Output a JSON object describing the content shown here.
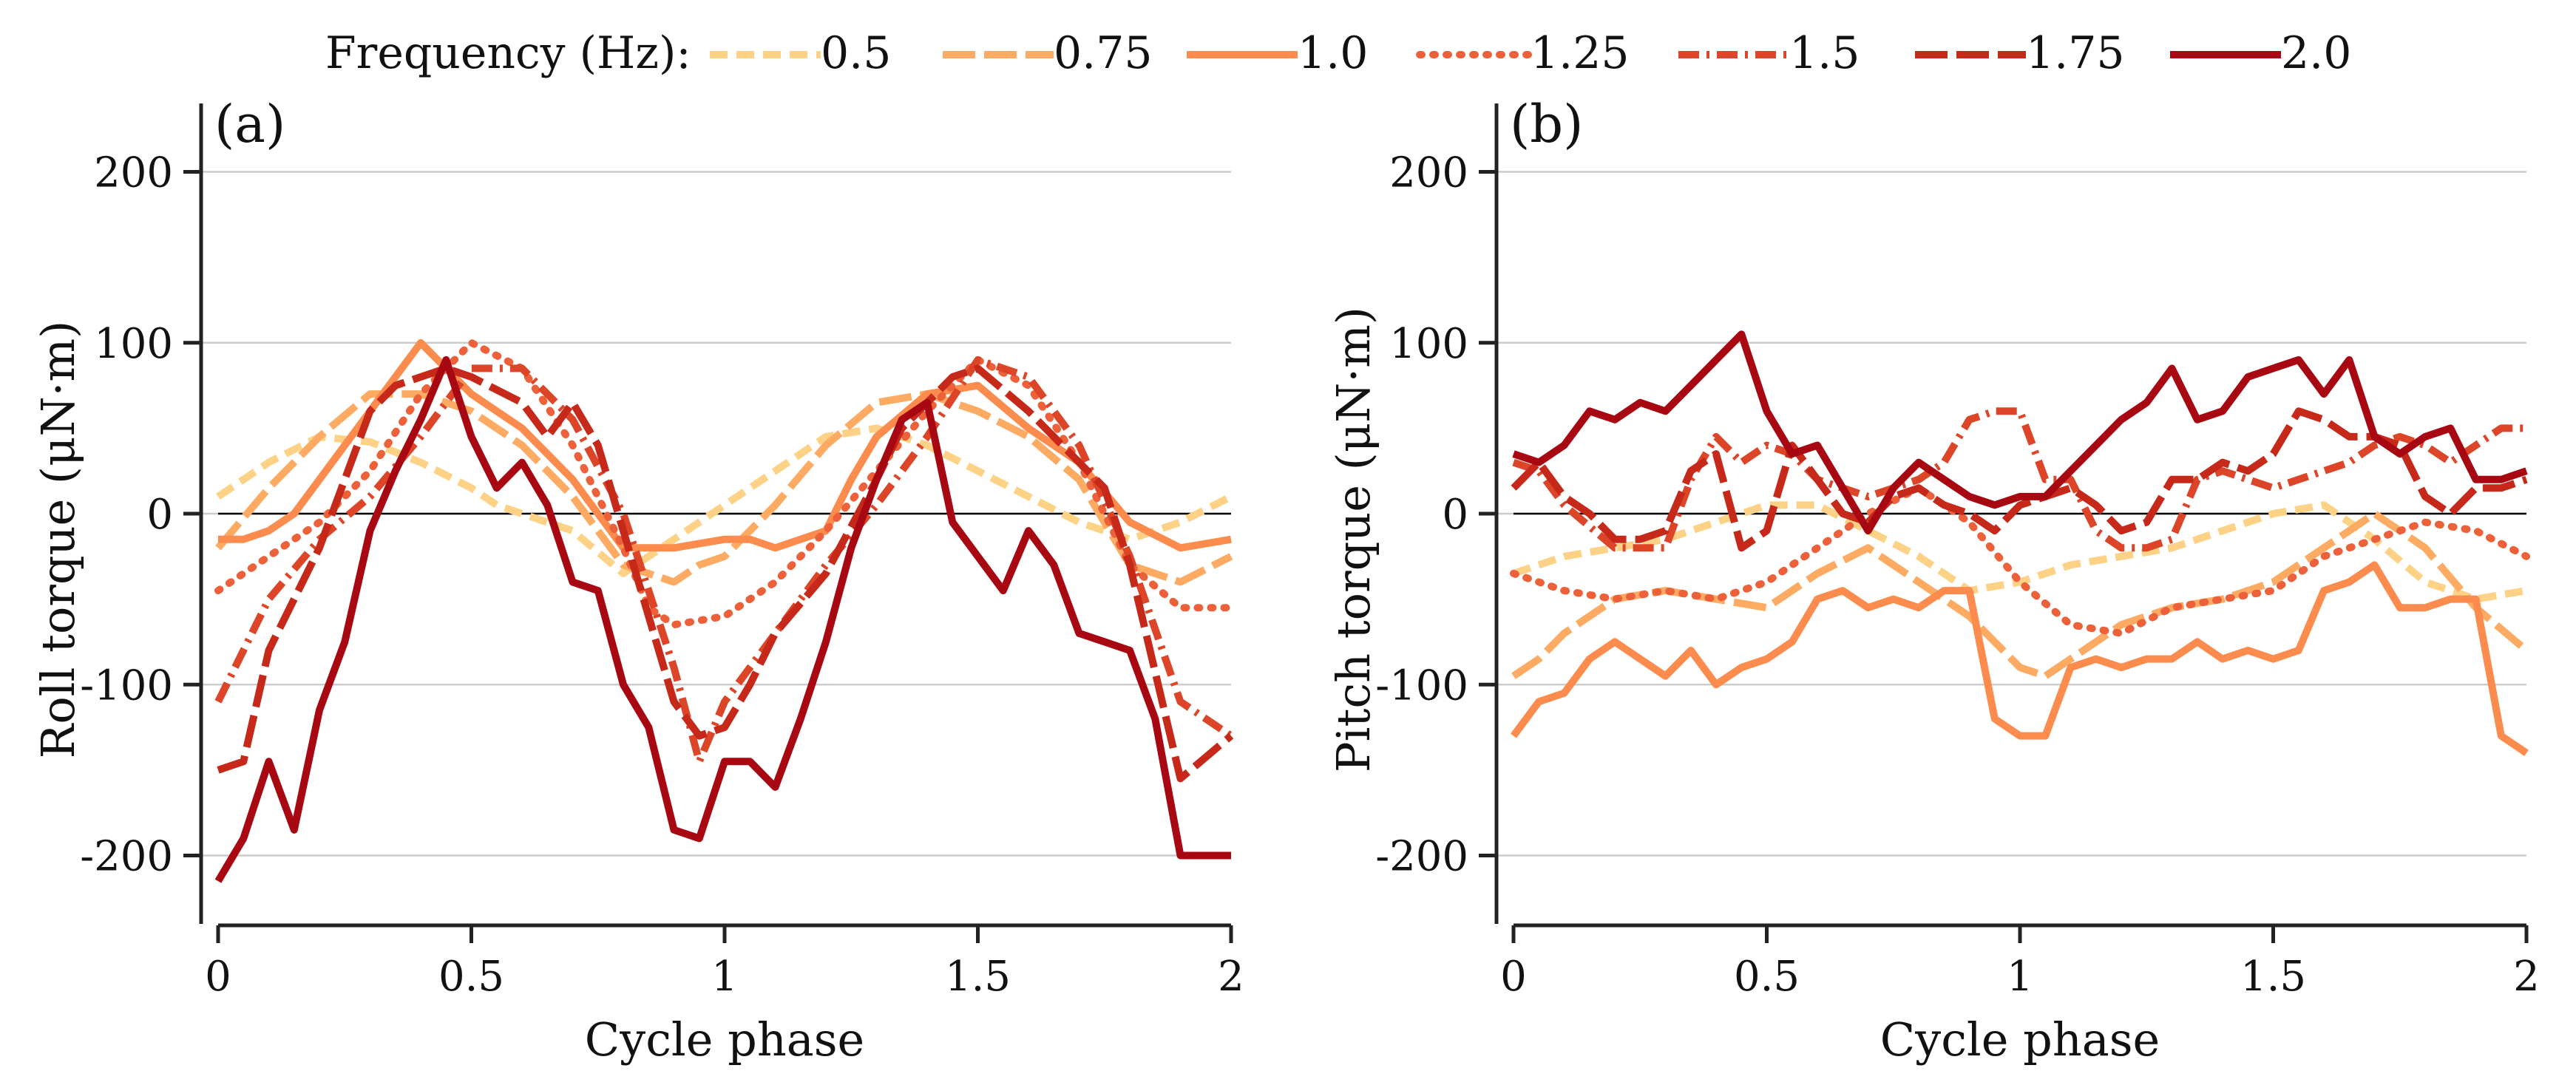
{
  "legend": {
    "title": "Frequency (Hz):",
    "entries": [
      {
        "label": "0.5",
        "color": "#fdd286",
        "dash": "dash"
      },
      {
        "label": "0.75",
        "color": "#fdab63",
        "dash": "longdash"
      },
      {
        "label": "1.0",
        "color": "#fb8c4d",
        "dash": "solid"
      },
      {
        "label": "1.25",
        "color": "#ec6139",
        "dash": "dot"
      },
      {
        "label": "1.5",
        "color": "#dd4528",
        "dash": "dashdot"
      },
      {
        "label": "1.75",
        "color": "#c6291a",
        "dash": "longdash"
      },
      {
        "label": "2.0",
        "color": "#a80812",
        "dash": "solid"
      }
    ]
  },
  "chart_data": [
    {
      "type": "line",
      "panel_label": "(a)",
      "xlabel": "Cycle phase",
      "ylabel": "Roll torque (μN·m)",
      "xlim": [
        0,
        2
      ],
      "ylim": [
        -240,
        240
      ],
      "xticks": [
        "0",
        "0.5",
        "1",
        "1.5",
        "2"
      ],
      "xtick_values": [
        0,
        0.5,
        1,
        1.5,
        2
      ],
      "yticks": [
        "-200",
        "-100",
        "0",
        "100",
        "200"
      ],
      "ytick_values": [
        -200,
        -100,
        0,
        100,
        200
      ],
      "grid": "horizontal",
      "zero_line": true,
      "series": [
        {
          "name": "0.5",
          "x": [
            0,
            0.1,
            0.2,
            0.3,
            0.4,
            0.5,
            0.55,
            0.6,
            0.7,
            0.8,
            0.9,
            1.0,
            1.1,
            1.2,
            1.3,
            1.4,
            1.5,
            1.6,
            1.7,
            1.8,
            1.9,
            2.0
          ],
          "y": [
            10,
            30,
            45,
            42,
            30,
            15,
            5,
            0,
            -10,
            -35,
            -15,
            5,
            25,
            45,
            50,
            40,
            25,
            10,
            -5,
            -15,
            -5,
            10
          ]
        },
        {
          "name": "0.75",
          "x": [
            0,
            0.1,
            0.2,
            0.3,
            0.4,
            0.5,
            0.6,
            0.7,
            0.8,
            0.9,
            0.95,
            1.0,
            1.1,
            1.2,
            1.3,
            1.4,
            1.5,
            1.6,
            1.7,
            1.8,
            1.9,
            2.0
          ],
          "y": [
            -20,
            15,
            45,
            70,
            70,
            60,
            40,
            10,
            -30,
            -40,
            -30,
            -25,
            5,
            40,
            65,
            70,
            60,
            45,
            20,
            -30,
            -40,
            -25
          ]
        },
        {
          "name": "1.0",
          "x": [
            0,
            0.05,
            0.1,
            0.15,
            0.2,
            0.3,
            0.4,
            0.45,
            0.5,
            0.6,
            0.7,
            0.8,
            0.9,
            1.0,
            1.05,
            1.1,
            1.2,
            1.25,
            1.3,
            1.4,
            1.5,
            1.6,
            1.7,
            1.8,
            1.9,
            2.0
          ],
          "y": [
            -15,
            -15,
            -10,
            0,
            20,
            60,
            100,
            85,
            70,
            50,
            20,
            -20,
            -20,
            -15,
            -15,
            -20,
            -10,
            20,
            45,
            70,
            75,
            50,
            30,
            -5,
            -20,
            -15
          ]
        },
        {
          "name": "1.25",
          "x": [
            0,
            0.1,
            0.2,
            0.3,
            0.4,
            0.5,
            0.6,
            0.7,
            0.8,
            0.85,
            0.9,
            1.0,
            1.1,
            1.2,
            1.3,
            1.4,
            1.5,
            1.6,
            1.7,
            1.8,
            1.9,
            2.0
          ],
          "y": [
            -45,
            -25,
            -5,
            25,
            70,
            100,
            85,
            40,
            -20,
            -55,
            -65,
            -60,
            -40,
            -10,
            25,
            60,
            90,
            75,
            30,
            -30,
            -55,
            -55
          ]
        },
        {
          "name": "1.5",
          "x": [
            0,
            0.1,
            0.2,
            0.3,
            0.4,
            0.5,
            0.6,
            0.7,
            0.8,
            0.9,
            0.95,
            1.0,
            1.1,
            1.2,
            1.3,
            1.4,
            1.5,
            1.6,
            1.7,
            1.8,
            1.9,
            2.0
          ],
          "y": [
            -110,
            -50,
            -15,
            10,
            45,
            85,
            85,
            55,
            0,
            -90,
            -145,
            -110,
            -70,
            -30,
            5,
            45,
            90,
            80,
            40,
            -25,
            -110,
            -130
          ]
        },
        {
          "name": "1.75",
          "x": [
            0,
            0.05,
            0.1,
            0.2,
            0.3,
            0.35,
            0.45,
            0.5,
            0.6,
            0.65,
            0.7,
            0.75,
            0.8,
            0.9,
            0.95,
            1.0,
            1.05,
            1.1,
            1.2,
            1.3,
            1.35,
            1.4,
            1.45,
            1.5,
            1.6,
            1.7,
            1.75,
            1.8,
            1.9,
            2.0
          ],
          "y": [
            -150,
            -145,
            -80,
            -20,
            60,
            75,
            85,
            80,
            65,
            45,
            65,
            40,
            -10,
            -110,
            -130,
            -125,
            -100,
            -70,
            -35,
            20,
            50,
            65,
            80,
            85,
            60,
            30,
            15,
            -30,
            -155,
            -130
          ]
        },
        {
          "name": "2.0",
          "x": [
            0,
            0.05,
            0.1,
            0.15,
            0.2,
            0.25,
            0.3,
            0.35,
            0.4,
            0.45,
            0.5,
            0.55,
            0.6,
            0.65,
            0.7,
            0.75,
            0.8,
            0.85,
            0.9,
            0.95,
            1.0,
            1.05,
            1.1,
            1.15,
            1.2,
            1.25,
            1.3,
            1.35,
            1.4,
            1.45,
            1.5,
            1.55,
            1.6,
            1.65,
            1.7,
            1.75,
            1.8,
            1.85,
            1.9,
            1.95,
            2.0
          ],
          "y": [
            -215,
            -190,
            -145,
            -185,
            -115,
            -75,
            -10,
            25,
            55,
            90,
            45,
            15,
            30,
            5,
            -40,
            -45,
            -100,
            -125,
            -185,
            -190,
            -145,
            -145,
            -160,
            -120,
            -75,
            -20,
            20,
            55,
            65,
            -5,
            -25,
            -45,
            -10,
            -30,
            -70,
            -75,
            -80,
            -120,
            -200,
            -200,
            -200
          ]
        }
      ]
    },
    {
      "type": "line",
      "panel_label": "(b)",
      "xlabel": "Cycle phase",
      "ylabel": "Pitch torque (μN·m)",
      "xlim": [
        0,
        2
      ],
      "ylim": [
        -240,
        240
      ],
      "xticks": [
        "0",
        "0.5",
        "1",
        "1.5",
        "2"
      ],
      "xtick_values": [
        0,
        0.5,
        1,
        1.5,
        2
      ],
      "yticks": [
        "-200",
        "-100",
        "0",
        "100",
        "200"
      ],
      "ytick_values": [
        -200,
        -100,
        0,
        100,
        200
      ],
      "grid": "horizontal",
      "zero_line": true,
      "series": [
        {
          "name": "0.5",
          "x": [
            0,
            0.1,
            0.2,
            0.3,
            0.4,
            0.5,
            0.6,
            0.7,
            0.8,
            0.9,
            1.0,
            1.1,
            1.2,
            1.3,
            1.4,
            1.5,
            1.6,
            1.7,
            1.8,
            1.9,
            2.0
          ],
          "y": [
            -35,
            -25,
            -20,
            -15,
            -5,
            5,
            5,
            -10,
            -25,
            -45,
            -40,
            -30,
            -25,
            -20,
            -10,
            0,
            5,
            -15,
            -40,
            -50,
            -45
          ]
        },
        {
          "name": "0.75",
          "x": [
            0,
            0.05,
            0.1,
            0.2,
            0.3,
            0.4,
            0.5,
            0.6,
            0.7,
            0.8,
            0.9,
            1.0,
            1.05,
            1.1,
            1.2,
            1.3,
            1.4,
            1.5,
            1.6,
            1.7,
            1.8,
            1.9,
            2.0
          ],
          "y": [
            -95,
            -85,
            -70,
            -50,
            -45,
            -50,
            -55,
            -35,
            -20,
            -40,
            -60,
            -90,
            -95,
            -85,
            -65,
            -55,
            -50,
            -40,
            -20,
            0,
            -20,
            -55,
            -80
          ]
        },
        {
          "name": "1.0",
          "x": [
            0,
            0.05,
            0.1,
            0.15,
            0.2,
            0.25,
            0.3,
            0.35,
            0.4,
            0.45,
            0.5,
            0.55,
            0.6,
            0.65,
            0.7,
            0.75,
            0.8,
            0.85,
            0.9,
            0.95,
            1.0,
            1.05,
            1.1,
            1.15,
            1.2,
            1.25,
            1.3,
            1.35,
            1.4,
            1.45,
            1.5,
            1.55,
            1.6,
            1.65,
            1.7,
            1.75,
            1.8,
            1.85,
            1.9,
            1.95,
            2.0
          ],
          "y": [
            -130,
            -110,
            -105,
            -85,
            -75,
            -85,
            -95,
            -80,
            -100,
            -90,
            -85,
            -75,
            -50,
            -45,
            -55,
            -50,
            -55,
            -45,
            -45,
            -120,
            -130,
            -130,
            -90,
            -85,
            -90,
            -85,
            -85,
            -75,
            -85,
            -80,
            -85,
            -80,
            -45,
            -40,
            -30,
            -55,
            -55,
            -50,
            -50,
            -130,
            -140
          ]
        },
        {
          "name": "1.25",
          "x": [
            0,
            0.1,
            0.2,
            0.3,
            0.4,
            0.5,
            0.6,
            0.7,
            0.8,
            0.9,
            1.0,
            1.1,
            1.2,
            1.3,
            1.4,
            1.5,
            1.6,
            1.7,
            1.8,
            1.9,
            2.0
          ],
          "y": [
            -35,
            -45,
            -50,
            -45,
            -50,
            -40,
            -20,
            0,
            15,
            -5,
            -40,
            -65,
            -70,
            -55,
            -50,
            -45,
            -25,
            -15,
            -5,
            -10,
            -25
          ]
        },
        {
          "name": "1.5",
          "x": [
            0,
            0.05,
            0.1,
            0.2,
            0.25,
            0.3,
            0.35,
            0.4,
            0.45,
            0.5,
            0.55,
            0.6,
            0.7,
            0.8,
            0.85,
            0.9,
            0.95,
            1.0,
            1.05,
            1.1,
            1.15,
            1.2,
            1.25,
            1.3,
            1.35,
            1.4,
            1.45,
            1.5,
            1.55,
            1.6,
            1.65,
            1.7,
            1.75,
            1.8,
            1.85,
            1.9,
            1.95,
            2.0
          ],
          "y": [
            30,
            25,
            5,
            -20,
            -20,
            -20,
            20,
            45,
            30,
            40,
            35,
            20,
            10,
            20,
            30,
            55,
            60,
            60,
            20,
            20,
            -10,
            -20,
            -20,
            -15,
            20,
            25,
            20,
            15,
            20,
            25,
            30,
            40,
            45,
            40,
            30,
            40,
            50,
            50
          ]
        },
        {
          "name": "1.75",
          "x": [
            0,
            0.05,
            0.1,
            0.15,
            0.2,
            0.25,
            0.3,
            0.35,
            0.4,
            0.45,
            0.5,
            0.55,
            0.6,
            0.65,
            0.7,
            0.75,
            0.8,
            0.85,
            0.9,
            0.95,
            1.0,
            1.05,
            1.1,
            1.15,
            1.2,
            1.25,
            1.3,
            1.35,
            1.4,
            1.45,
            1.5,
            1.55,
            1.6,
            1.65,
            1.7,
            1.75,
            1.8,
            1.85,
            1.9,
            1.95,
            2.0
          ],
          "y": [
            15,
            30,
            10,
            0,
            -15,
            -15,
            -10,
            25,
            35,
            -20,
            -10,
            40,
            20,
            0,
            -5,
            10,
            15,
            5,
            0,
            -10,
            5,
            10,
            15,
            5,
            -10,
            -5,
            20,
            20,
            30,
            25,
            35,
            60,
            55,
            45,
            45,
            40,
            10,
            0,
            15,
            15,
            20
          ]
        },
        {
          "name": "2.0",
          "x": [
            0,
            0.05,
            0.1,
            0.15,
            0.2,
            0.25,
            0.3,
            0.35,
            0.4,
            0.45,
            0.5,
            0.55,
            0.6,
            0.65,
            0.7,
            0.75,
            0.8,
            0.85,
            0.9,
            0.95,
            1.0,
            1.05,
            1.1,
            1.15,
            1.2,
            1.25,
            1.3,
            1.35,
            1.4,
            1.45,
            1.5,
            1.55,
            1.6,
            1.65,
            1.7,
            1.75,
            1.8,
            1.85,
            1.9,
            1.95,
            2.0
          ],
          "y": [
            35,
            30,
            40,
            60,
            55,
            65,
            60,
            75,
            90,
            105,
            60,
            35,
            40,
            15,
            -10,
            15,
            30,
            20,
            10,
            5,
            10,
            10,
            25,
            40,
            55,
            65,
            85,
            55,
            60,
            80,
            85,
            90,
            70,
            90,
            45,
            35,
            45,
            50,
            20,
            20,
            25
          ]
        }
      ]
    }
  ]
}
